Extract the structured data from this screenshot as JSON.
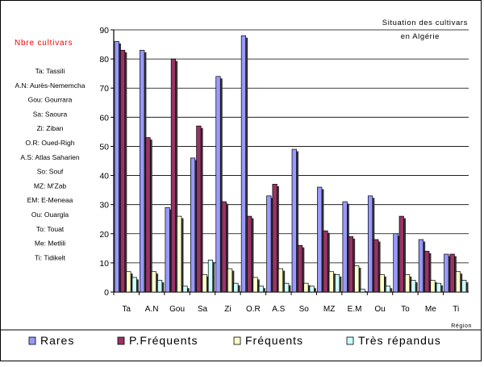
{
  "chart_data": {
    "type": "bar",
    "title_lines": [
      "Situation des cultivars",
      "en Algérie"
    ],
    "ylabel": "Nbre cultivars",
    "xlabel": "Région",
    "ylim": [
      0,
      90
    ],
    "ytick_step": 10,
    "grid": true,
    "legend_position": "bottom",
    "categories": [
      "Ta",
      "A.N",
      "Gou",
      "Sa",
      "Zi",
      "O.R",
      "A.S",
      "So",
      "MZ",
      "E.M",
      "Ou",
      "To",
      "Me",
      "Ti"
    ],
    "series": [
      {
        "name": "Rares",
        "color": "#9999ff",
        "values": [
          86,
          83,
          29,
          46,
          74,
          88,
          33,
          49,
          36,
          31,
          33,
          20,
          18,
          13
        ]
      },
      {
        "name": "P.Fréquents",
        "color": "#993366",
        "values": [
          83,
          53,
          80,
          57,
          31,
          26,
          37,
          16,
          21,
          19,
          18,
          26,
          14,
          13
        ]
      },
      {
        "name": "Fréquents",
        "color": "#ffffcc",
        "values": [
          7,
          7,
          26,
          6,
          8,
          5,
          8,
          3,
          7,
          9,
          6,
          6,
          4,
          7
        ]
      },
      {
        "name": "Très répandus",
        "color": "#ccffff",
        "values": [
          5,
          4,
          2,
          11,
          3,
          2,
          3,
          2,
          6,
          1,
          2,
          4,
          3,
          4
        ]
      }
    ],
    "region_key": [
      "Ta: Tassili",
      "A.N: Aurès-Nememcha",
      "Gou: Gourrara",
      "Sa: Saoura",
      "Zi: Ziban",
      "O.R: Oued-Righ",
      "A.S: Atlas Saharien",
      "So: Souf",
      "MZ: M'Zab",
      "EM: E-Meneaa",
      "Ou: Ouargla",
      "To: Touat",
      "Me: Metlili",
      "Ti: Tidikelt"
    ]
  }
}
